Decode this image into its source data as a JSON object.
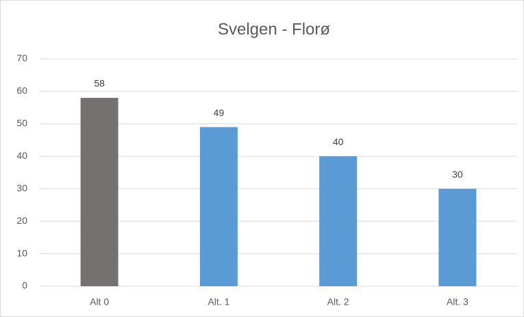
{
  "chart_data": {
    "type": "bar",
    "title": "Svelgen - Florø",
    "categories": [
      "Alt 0",
      "Alt. 1",
      "Alt. 2",
      "Alt. 3"
    ],
    "values": [
      58,
      49,
      40,
      30
    ],
    "colors": [
      "#767171",
      "#5b9bd5",
      "#5b9bd5",
      "#5b9bd5"
    ],
    "ylim": [
      0,
      70
    ],
    "yticks": [
      0,
      10,
      20,
      30,
      40,
      50,
      60,
      70
    ],
    "grid": true
  }
}
